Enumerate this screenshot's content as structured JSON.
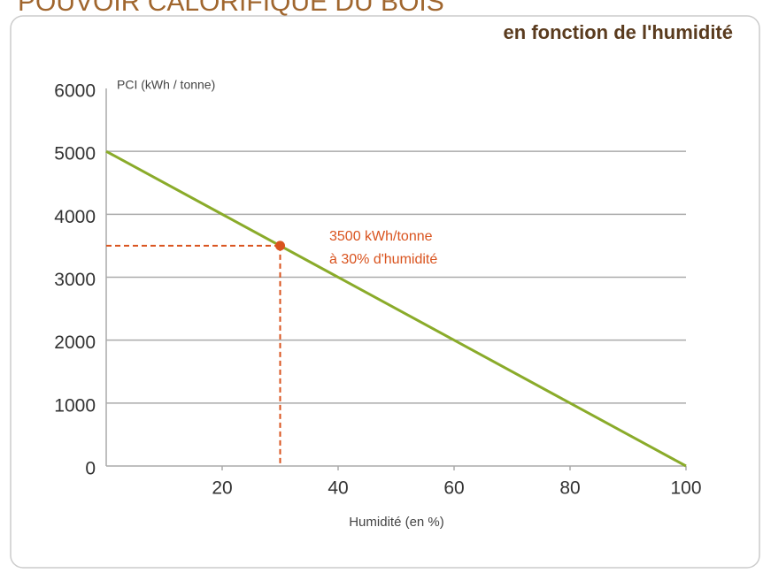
{
  "chart_data": {
    "type": "line",
    "title": "POUVOIR CALORIFIQUE DU BOIS",
    "subtitle": "en fonction de l'humidité",
    "y_label": "PCI (kWh / tonne)",
    "x_label": "Humidité (en %)",
    "x": [
      0,
      100
    ],
    "series": [
      {
        "name": "PCI",
        "color": "#8aab2a",
        "values": [
          5000,
          0
        ]
      }
    ],
    "highlight": {
      "x": 30,
      "y": 3500,
      "color": "#d9531e"
    },
    "annotation": [
      "3500 kWh/tonne",
      "à 30% d'humidité"
    ],
    "xlim": [
      0,
      100
    ],
    "xticks": [
      20,
      40,
      60,
      80,
      100
    ],
    "ylim": [
      0,
      6000
    ],
    "yticks": [
      0,
      1000,
      2000,
      3000,
      4000,
      5000,
      6000
    ],
    "grid": true
  }
}
